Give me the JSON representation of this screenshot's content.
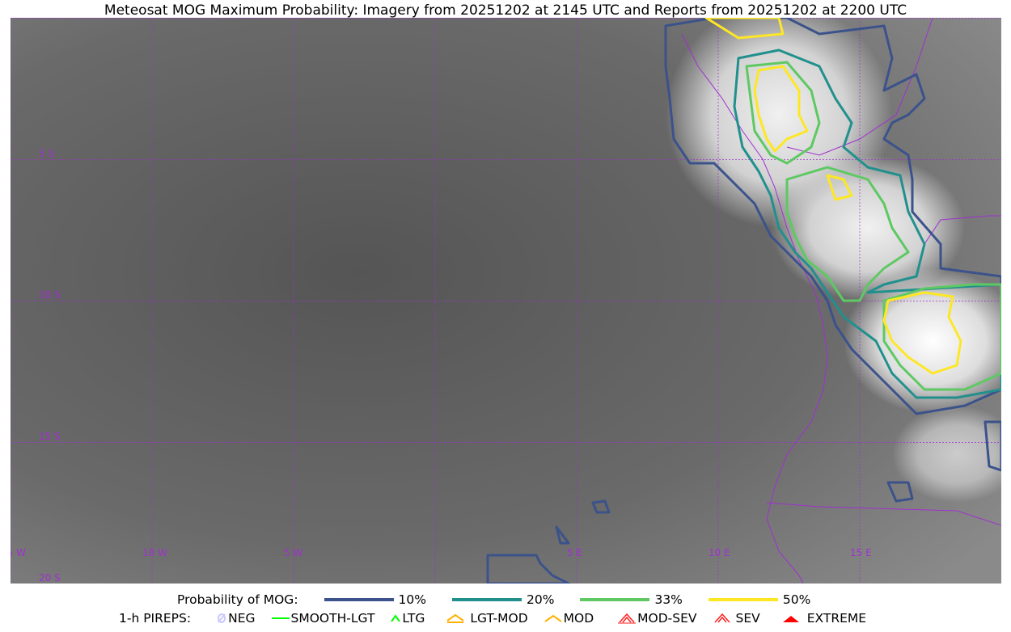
{
  "title": "Meteosat MOG Maximum Probability: Imagery from 20251202 at 2145 UTC and Reports from 20251202 at 2200 UTC",
  "map": {
    "lon_labels": [
      "15 W",
      "10 W",
      "5 W",
      "5 E",
      "10 E",
      "15 E"
    ],
    "lon_values": [
      -15,
      -10,
      -5,
      5,
      10,
      15
    ],
    "lat_labels": [
      "5 S",
      "10 S",
      "15 S",
      "20 S"
    ],
    "lat_values": [
      -5,
      -10,
      -15,
      -20
    ],
    "extent": {
      "lon": [
        -15,
        20
      ],
      "lat": [
        -20,
        0
      ]
    },
    "grid_color": "#a030d0",
    "coastline_color": "#a030d0"
  },
  "legend": {
    "probability_label": "Probability of MOG:",
    "levels": [
      {
        "label": "10%",
        "color": "#3b528b"
      },
      {
        "label": "20%",
        "color": "#21908d"
      },
      {
        "label": "33%",
        "color": "#5ec962"
      },
      {
        "label": "50%",
        "color": "#fde725"
      }
    ],
    "pirep_label": "1-h PIREPS:",
    "pireps": [
      {
        "label": "NEG",
        "color": "#c8c8ff",
        "icon": "neg-icon"
      },
      {
        "label": "SMOOTH-LGT",
        "color": "#00ff00",
        "icon": "smooth-lgt-icon"
      },
      {
        "label": "LTG",
        "color": "#00ff00",
        "icon": "ltg-icon"
      },
      {
        "label": "LGT-MOD",
        "color": "#ffb000",
        "icon": "lgt-mod-icon"
      },
      {
        "label": "MOD",
        "color": "#ffb000",
        "icon": "mod-icon"
      },
      {
        "label": "MOD-SEV",
        "color": "#ff2020",
        "icon": "mod-sev-icon"
      },
      {
        "label": "SEV",
        "color": "#ff2020",
        "icon": "sev-icon"
      },
      {
        "label": "EXTREME",
        "color": "#ff0000",
        "icon": "extreme-icon"
      }
    ]
  }
}
